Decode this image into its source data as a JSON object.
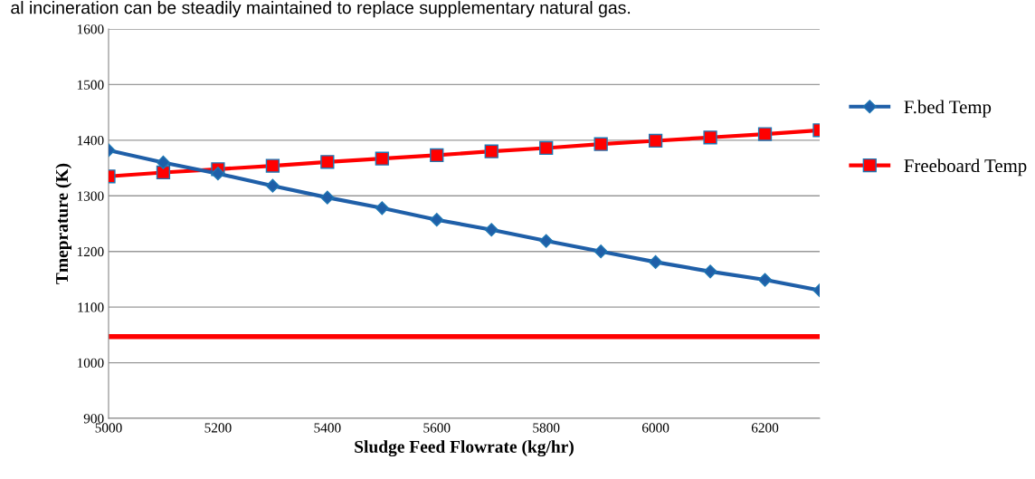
{
  "chart_data": {
    "type": "line",
    "xlabel": "Sludge Feed Flowrate (kg/hr)",
    "ylabel": "Tmeprature (K)",
    "annotations": [
      "al incineration can be steadily maintained to replace supplementary natural gas."
    ],
    "x": [
      5000,
      5100,
      5200,
      5300,
      5400,
      5500,
      5600,
      5700,
      5800,
      5900,
      6000,
      6100,
      6200,
      6300
    ],
    "series": [
      {
        "name": "F.bed Temp",
        "color": "#1f5fa8",
        "marker": "diamond",
        "values": [
          1382,
          1360,
          1340,
          1318,
          1297,
          1278,
          1257,
          1239,
          1219,
          1200,
          1181,
          1164,
          1149,
          1130
        ]
      },
      {
        "name": "Freeboard Temp",
        "color": "#ff0000",
        "marker": "square",
        "values": [
          1335,
          1342,
          1348,
          1354,
          1361,
          1367,
          1373,
          1380,
          1386,
          1393,
          1399,
          1405,
          1411,
          1418
        ]
      }
    ],
    "ref_lines": [
      {
        "axis": "y",
        "value": 1047,
        "color": "#ff0000"
      }
    ],
    "xlim": [
      5000,
      6300
    ],
    "xticks": [
      5000,
      5200,
      5400,
      5600,
      5800,
      6000,
      6200
    ],
    "ylim": [
      900,
      1600
    ],
    "yticks": [
      900,
      1000,
      1100,
      1200,
      1300,
      1400,
      1500,
      1600
    ],
    "grid": "y",
    "legend": "right",
    "line_style": "solid"
  }
}
